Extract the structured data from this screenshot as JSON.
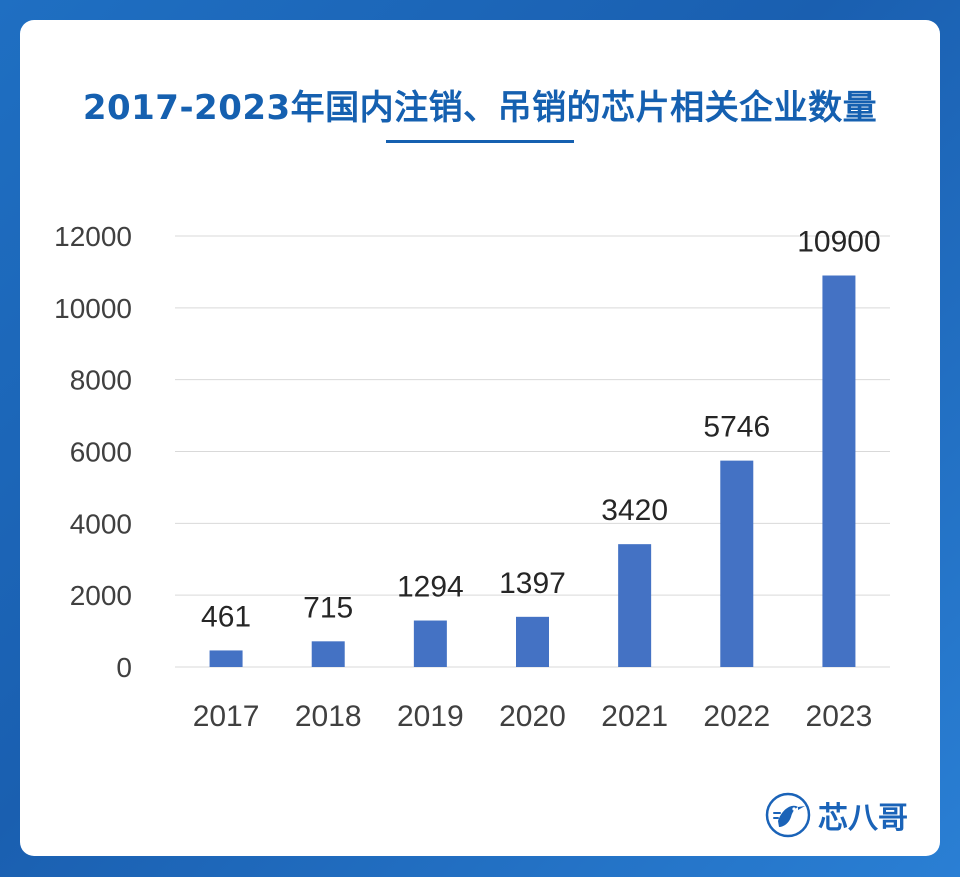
{
  "chart_data": {
    "type": "bar",
    "title": "2017-2023年国内注销、吊销的芯片相关企业数量",
    "categories": [
      "2017",
      "2018",
      "2019",
      "2020",
      "2021",
      "2022",
      "2023"
    ],
    "values": [
      461,
      715,
      1294,
      1397,
      3420,
      5746,
      10900
    ],
    "ylim": [
      0,
      12000
    ],
    "yticks": [
      0,
      2000,
      4000,
      6000,
      8000,
      10000,
      12000
    ],
    "grid": true,
    "bar_color": "#4472c4",
    "xlabel": "",
    "ylabel": ""
  },
  "brand": {
    "name": "芯八哥",
    "icon": "kingfisher-logo-icon",
    "color": "#1a63b8"
  },
  "colors": {
    "accent": "#1560b0",
    "background": "#1f6fc2"
  }
}
